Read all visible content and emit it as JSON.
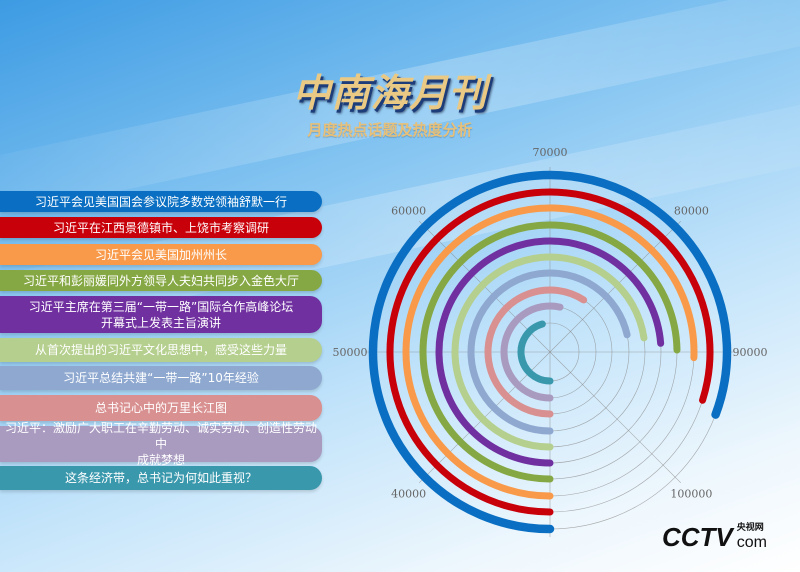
{
  "header": {
    "title": "中南海月刊",
    "subtitle": "月度热点话题及热度分析"
  },
  "logo": {
    "main": "CCTV",
    "sub": "央视网",
    "domain": "com"
  },
  "chart_data": {
    "type": "radial-bar",
    "title": "",
    "axis_ticks": [
      40000,
      50000,
      60000,
      70000,
      80000,
      90000,
      100000
    ],
    "axis_range": [
      30000,
      110000
    ],
    "direction": "clockwise from bottom",
    "grid": true,
    "categories": [
      "习近平会见美国国会参议院多数党领袖舒默一行",
      "习近平在江西景德镇市、上饶市考察调研",
      "习近平会见美国加州州长",
      "习近平和彭丽媛同外方领导人夫妇共同步入金色大厅",
      "习近平主席在第三届“一带一路”国际合作高峰论坛\n开幕式上发表主旨演讲",
      "从首次提出的习近平文化思想中，感受这些力量",
      "习近平总结共建“一带一路”10年经验",
      "总书记心中的万里长江图",
      "习近平：激励广大职工在辛勤劳动、诚实劳动、创造性劳动中\n成就梦想",
      "这条经济带，总书记为何如此重视？"
    ],
    "values": [
      94600,
      93900,
      90500,
      89800,
      89000,
      88100,
      87200,
      77300,
      72800,
      66600
    ],
    "colors": [
      "#0a6fc2",
      "#c8000a",
      "#f89a4a",
      "#86a844",
      "#7030a0",
      "#b5cf8e",
      "#8ea8d0",
      "#d99090",
      "#a99ac0",
      "#3a98ad"
    ]
  }
}
